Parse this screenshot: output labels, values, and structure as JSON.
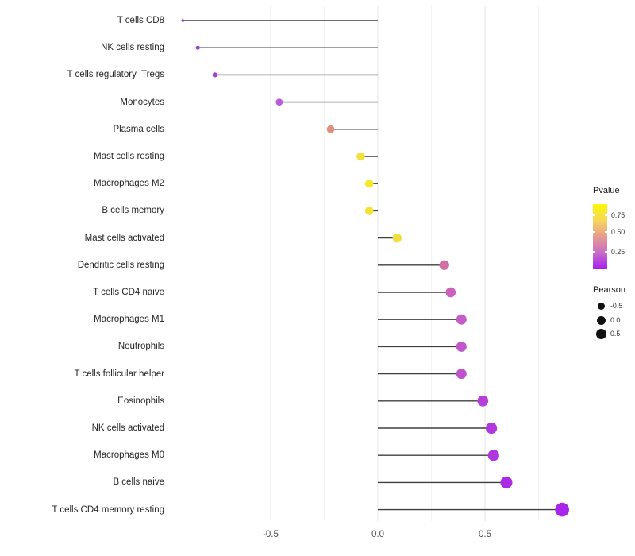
{
  "chart_data": {
    "type": "lollipop",
    "orientation": "horizontal",
    "title": "",
    "xlabel": "",
    "ylabel": "",
    "x_ticks": [
      {
        "label": "-0.5",
        "value": -0.5
      },
      {
        "label": "0.0",
        "value": 0.0
      },
      {
        "label": "0.5",
        "value": 0.5
      }
    ],
    "x_range": [
      -0.96,
      0.98
    ],
    "gridline_values": [
      -0.75,
      -0.5,
      -0.25,
      0.0,
      0.25,
      0.5,
      0.75
    ],
    "grid": "vertical-only",
    "baseline_value": 0.0,
    "points": [
      {
        "label": "T cells CD8",
        "pearson": -0.91,
        "color": "#9141C6",
        "radius": 1.8
      },
      {
        "label": "NK cells resting",
        "pearson": -0.84,
        "color": "#9645CB",
        "radius": 2.6
      },
      {
        "label": "T cells regulatory  Tregs",
        "pearson": -0.76,
        "color": "#9A43D0",
        "radius": 3.1
      },
      {
        "label": "Monocytes",
        "pearson": -0.46,
        "color": "#B95CD9",
        "radius": 4.4
      },
      {
        "label": "Plasma cells",
        "pearson": -0.22,
        "color": "#E0907F",
        "radius": 4.9
      },
      {
        "label": "Mast cells resting",
        "pearson": -0.08,
        "color": "#F0E13C",
        "radius": 5.2
      },
      {
        "label": "Macrophages M2",
        "pearson": -0.04,
        "color": "#F4E92B",
        "radius": 5.3
      },
      {
        "label": "B cells memory",
        "pearson": -0.04,
        "color": "#F2E431",
        "radius": 5.3
      },
      {
        "label": "Mast cells activated",
        "pearson": 0.09,
        "color": "#F0DF3C",
        "radius": 5.7
      },
      {
        "label": "Dendritic cells resting",
        "pearson": 0.31,
        "color": "#D06FA4",
        "radius": 6.2
      },
      {
        "label": "T cells CD4 naive",
        "pearson": 0.34,
        "color": "#CA62B9",
        "radius": 6.3
      },
      {
        "label": "Macrophages M1",
        "pearson": 0.39,
        "color": "#C55CC5",
        "radius": 6.5
      },
      {
        "label": "Neutrophils",
        "pearson": 0.39,
        "color": "#C156CA",
        "radius": 6.5
      },
      {
        "label": "T cells follicular helper",
        "pearson": 0.39,
        "color": "#C053CD",
        "radius": 6.5
      },
      {
        "label": "Eosinophils",
        "pearson": 0.49,
        "color": "#B73FD9",
        "radius": 6.9
      },
      {
        "label": "NK cells activated",
        "pearson": 0.53,
        "color": "#B138DF",
        "radius": 7.1
      },
      {
        "label": "Macrophages M0",
        "pearson": 0.54,
        "color": "#B036E0",
        "radius": 7.1
      },
      {
        "label": "B cells naive",
        "pearson": 0.6,
        "color": "#AB2BE5",
        "radius": 7.5
      },
      {
        "label": "T cells CD4 memory resting",
        "pearson": 0.86,
        "color": "#A826EC",
        "radius": 8.8
      }
    ]
  },
  "legend": {
    "pvalue": {
      "title": "Pvalue",
      "gradient_bottom_to_top": [
        "#A51FF0",
        "#C76BC8",
        "#E79B90",
        "#F5D55C",
        "#FDF702"
      ],
      "ticks": [
        {
          "label": "0.75",
          "frac_from_bottom": 0.829
        },
        {
          "label": "0.50",
          "frac_from_bottom": 0.573
        },
        {
          "label": "0.25",
          "frac_from_bottom": 0.268
        }
      ]
    },
    "pearson": {
      "title": "Pearson",
      "dot_color": "#111111",
      "items": [
        {
          "label": "-0.5",
          "diameter": 9
        },
        {
          "label": "0.0",
          "diameter": 11
        },
        {
          "label": "0.5",
          "diameter": 13
        }
      ]
    }
  },
  "colors": {
    "stem": "#3f3f3f",
    "grid_major": "#e6e6e6",
    "grid_minor": "#efefef",
    "axis_text": "#4d4d4d"
  }
}
